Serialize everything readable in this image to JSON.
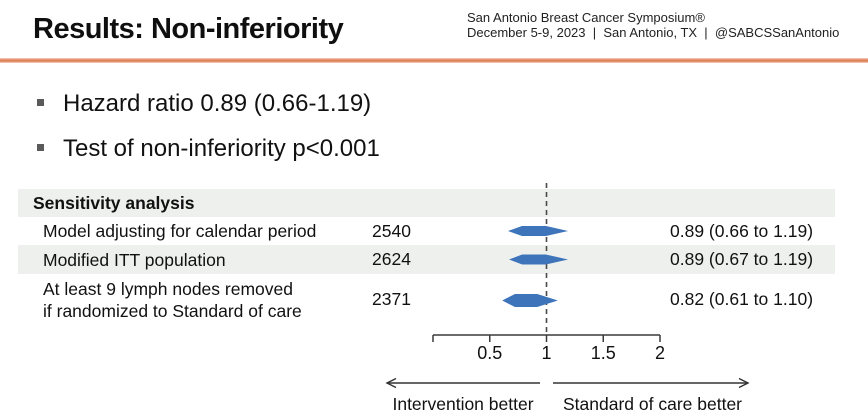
{
  "header": {
    "title": "Results: Non-inferiority",
    "conference_name": "San Antonio Breast Cancer Symposium®",
    "conference_details": "December 5-9, 2023  |  San Antonio, TX  |  @SABCSSanAntonio",
    "accent_color": "#dd7b52"
  },
  "bullets": [
    {
      "text": "Hazard ratio 0.89 (0.66-1.19)"
    },
    {
      "text": "Test of non-inferiority p<0.001"
    }
  ],
  "chart_data": {
    "type": "forest",
    "section_header": "Sensitivity analysis",
    "rows": [
      {
        "label": "Model adjusting for calendar period",
        "n": "2540",
        "estimate": 0.89,
        "ci_low": 0.66,
        "ci_high": 1.19,
        "estimate_text": "0.89 (0.66 to 1.19)"
      },
      {
        "label": "Modified ITT population",
        "n": "2624",
        "estimate": 0.89,
        "ci_low": 0.67,
        "ci_high": 1.19,
        "estimate_text": "0.89 (0.67 to 1.19)"
      },
      {
        "label": "At least 9 lymph nodes removed",
        "label_line2": "if randomized to Standard of care",
        "n": "2371",
        "estimate": 0.82,
        "ci_low": 0.61,
        "ci_high": 1.1,
        "estimate_text": "0.82 (0.61 to 1.10)"
      }
    ],
    "axis": {
      "min": 0,
      "max": 2,
      "ticks": [
        0,
        0.5,
        1,
        1.5,
        2
      ],
      "tick_labels": [
        "",
        "0.5",
        "1",
        "1.5",
        "2"
      ],
      "reference_line": 1
    },
    "direction_labels": {
      "left": "Intervention better",
      "right": "Standard of care better"
    },
    "colors": {
      "diamond": "#3d74ba",
      "band": "#eef0ee",
      "axis": "#3a3a3a",
      "ref_line": "#4a4a4a"
    }
  }
}
